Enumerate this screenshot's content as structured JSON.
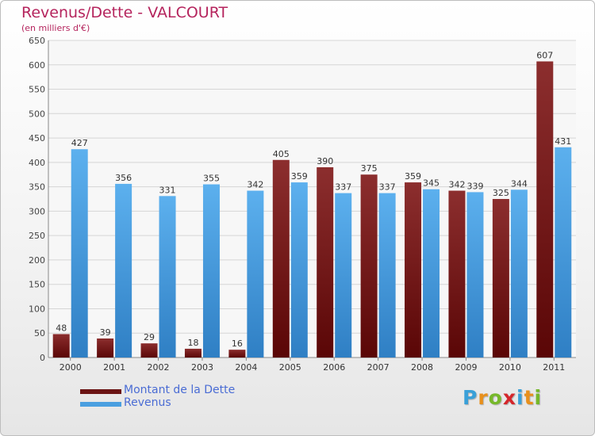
{
  "chart_data": {
    "type": "bar",
    "title": "Revenus/Dette - VALCOURT",
    "subtitle": "(en milliers d'€)",
    "xlabel": "",
    "ylabel": "",
    "ylim": [
      0,
      650
    ],
    "yticks": [
      0,
      50,
      100,
      150,
      200,
      250,
      300,
      350,
      400,
      450,
      500,
      550,
      600,
      650
    ],
    "grid": true,
    "legend_position": "bottom-left",
    "categories": [
      "2000",
      "2001",
      "2002",
      "2003",
      "2004",
      "2005",
      "2006",
      "2007",
      "2008",
      "2009",
      "2010",
      "2011"
    ],
    "series": [
      {
        "name": "Montant de la Dette",
        "color": "#7a1b1b",
        "values": [
          48,
          39,
          29,
          18,
          16,
          405,
          390,
          375,
          359,
          342,
          325,
          607
        ]
      },
      {
        "name": "Revenus",
        "color": "#4a9fe0",
        "values": [
          427,
          356,
          331,
          355,
          342,
          359,
          337,
          337,
          345,
          339,
          344,
          431
        ]
      }
    ]
  },
  "brand": {
    "letters": [
      "P",
      "r",
      "o",
      "x",
      "i",
      "t",
      "i"
    ],
    "colors": [
      "#3aa0d8",
      "#e8901c",
      "#76b82a",
      "#d4262b",
      "#3aa0d8",
      "#e8901c",
      "#76b82a"
    ]
  }
}
